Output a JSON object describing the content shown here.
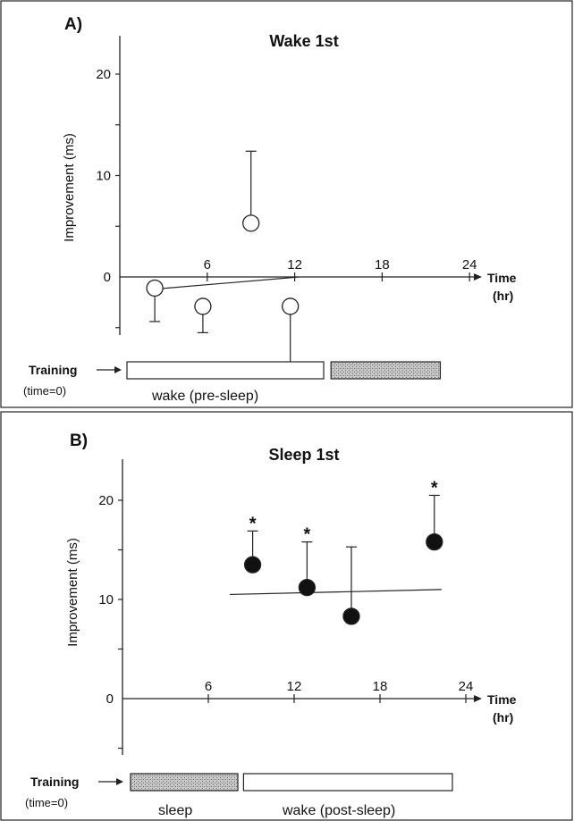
{
  "chart_data": [
    {
      "panel_label": "A)",
      "title": "Wake 1st",
      "type": "scatter",
      "ylabel": "Improvement (ms)",
      "ylim": [
        -8,
        24
      ],
      "yticks": [
        0,
        10,
        20
      ],
      "xlim": [
        0,
        24
      ],
      "xticks": [
        6,
        12,
        18,
        24
      ],
      "xaxis_label": [
        "Time",
        "(hr)"
      ],
      "marker": "open-circle",
      "points": [
        {
          "x": 2.4,
          "y": -1.1,
          "err_low": 3.3,
          "err_high": 0
        },
        {
          "x": 5.7,
          "y": -2.9,
          "err_low": 2.6,
          "err_high": 0
        },
        {
          "x": 9.0,
          "y": 5.3,
          "err_low": 0,
          "err_high": 7.1
        },
        {
          "x": 11.7,
          "y": -2.9,
          "err_low": 5.5,
          "err_high": 0
        }
      ],
      "trend_line": [
        [
          2.4,
          -1.2
        ],
        [
          12.3,
          0
        ]
      ],
      "significant": [],
      "training": {
        "label": "Training",
        "sub": "(time=0)"
      },
      "periods": [
        {
          "kind": "wake",
          "start": 0,
          "end": 13.5,
          "label": "wake (pre-sleep)"
        },
        {
          "kind": "sleep",
          "start": 14,
          "end": 21.5,
          "label": ""
        }
      ]
    },
    {
      "panel_label": "B)",
      "title": "Sleep 1st",
      "type": "scatter",
      "ylabel": "Improvement (ms)",
      "ylim": [
        -8,
        24
      ],
      "yticks": [
        0,
        10,
        20
      ],
      "xlim": [
        0,
        24
      ],
      "xticks": [
        6,
        12,
        18,
        24
      ],
      "xaxis_label": [
        "Time",
        "(hr)"
      ],
      "marker": "filled-circle",
      "points": [
        {
          "x": 9.1,
          "y": 13.5,
          "err_low": 0,
          "err_high": 3.4
        },
        {
          "x": 12.9,
          "y": 11.2,
          "err_low": 0,
          "err_high": 4.6
        },
        {
          "x": 16.0,
          "y": 8.3,
          "err_low": 0,
          "err_high": 7.0
        },
        {
          "x": 21.8,
          "y": 15.8,
          "err_low": 0,
          "err_high": 4.7
        }
      ],
      "trend_line": [
        [
          7.5,
          10.5
        ],
        [
          22.3,
          11.0
        ]
      ],
      "significant": [
        0,
        1,
        3
      ],
      "significance_marker": "*",
      "training": {
        "label": "Training",
        "sub": "(time=0)"
      },
      "periods": [
        {
          "kind": "sleep",
          "start": 0,
          "end": 7.5,
          "label": "sleep"
        },
        {
          "kind": "wake",
          "start": 7.9,
          "end": 22.5,
          "label": "wake (post-sleep)"
        }
      ]
    }
  ]
}
